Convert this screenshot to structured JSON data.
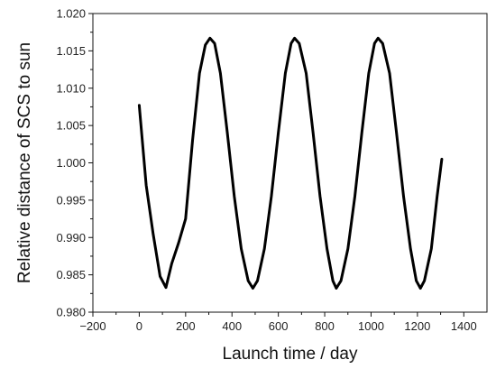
{
  "chart_data": {
    "type": "line",
    "title": "",
    "xlabel": "Launch time / day",
    "ylabel": "Relative distance of SCS to sun",
    "xlim": [
      -200,
      1500
    ],
    "ylim": [
      0.98,
      1.02
    ],
    "x_ticks": [
      -200,
      0,
      200,
      400,
      600,
      800,
      1000,
      1200,
      1400
    ],
    "x_tick_labels": [
      "−200",
      "0",
      "200",
      "400",
      "600",
      "800",
      "1000",
      "1200",
      "1400"
    ],
    "y_ticks": [
      0.98,
      0.985,
      0.99,
      0.995,
      1.0,
      1.005,
      1.01,
      1.015,
      1.02
    ],
    "y_tick_labels": [
      "0.980",
      "0.985",
      "0.990",
      "0.995",
      "1.000",
      "1.005",
      "1.010",
      "1.015",
      "1.020"
    ],
    "grid": false,
    "legend": "none",
    "line_color": "#000000",
    "series": [
      {
        "x": [
          0,
          30,
          60,
          90,
          115,
          140,
          170,
          200,
          230,
          260,
          285,
          305,
          325,
          350,
          380,
          410,
          440,
          470,
          490,
          510,
          540,
          570,
          600,
          630,
          655,
          670,
          690,
          720,
          750,
          780,
          810,
          835,
          850,
          870,
          900,
          930,
          960,
          990,
          1015,
          1030,
          1050,
          1080,
          1110,
          1140,
          1170,
          1195,
          1213,
          1230,
          1260,
          1285,
          1305
        ],
        "y": [
          1.0077,
          0.997,
          0.9905,
          0.9848,
          0.9833,
          0.9865,
          0.9893,
          0.9925,
          1.003,
          1.012,
          1.0158,
          1.0167,
          1.016,
          1.012,
          1.004,
          0.9955,
          0.9885,
          0.9842,
          0.9832,
          0.9842,
          0.9885,
          0.9955,
          1.004,
          1.012,
          1.016,
          1.0167,
          1.016,
          1.012,
          1.004,
          0.9955,
          0.9885,
          0.9842,
          0.9832,
          0.9842,
          0.9885,
          0.9955,
          1.004,
          1.012,
          1.016,
          1.0167,
          1.016,
          1.012,
          1.004,
          0.9955,
          0.9885,
          0.9842,
          0.9832,
          0.9842,
          0.9885,
          0.9955,
          1.0005
        ]
      }
    ]
  }
}
